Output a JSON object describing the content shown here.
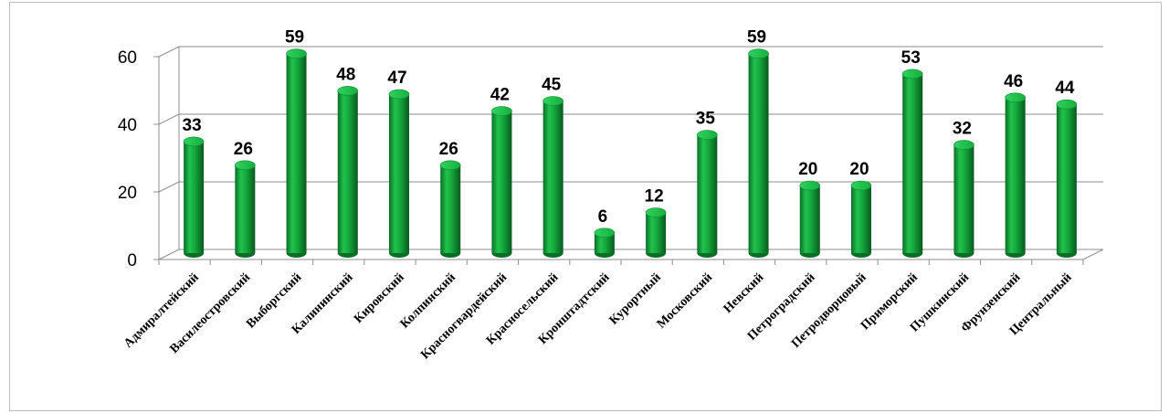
{
  "chart_data": {
    "type": "bar",
    "title": "",
    "xlabel": "",
    "ylabel": "",
    "ylim": [
      0,
      60
    ],
    "yticks": [
      "0",
      "20",
      "40",
      "60"
    ],
    "grid": true,
    "legend": "none",
    "bar_color": "#14a83c",
    "categories": [
      "Адмиралтейский",
      "Василеостровский",
      "Выборгский",
      "Калининский",
      "Кировский",
      "Колпинский",
      "Красногвардейский",
      "Красносельский",
      "Кронштадтский",
      "Курортный",
      "Московский",
      "Невский",
      "Петроградский",
      "Петродворцовый",
      "Приморский",
      "Пушкинский",
      "Фрунзенский",
      "Центральный"
    ],
    "values": [
      33,
      26,
      59,
      48,
      47,
      26,
      42,
      45,
      6,
      12,
      35,
      59,
      20,
      20,
      53,
      32,
      46,
      44
    ],
    "value_labels": [
      "33",
      "26",
      "59",
      "48",
      "47",
      "26",
      "42",
      "45",
      "6",
      "12",
      "35",
      "59",
      "20",
      "20",
      "53",
      "32",
      "46",
      "44"
    ]
  }
}
